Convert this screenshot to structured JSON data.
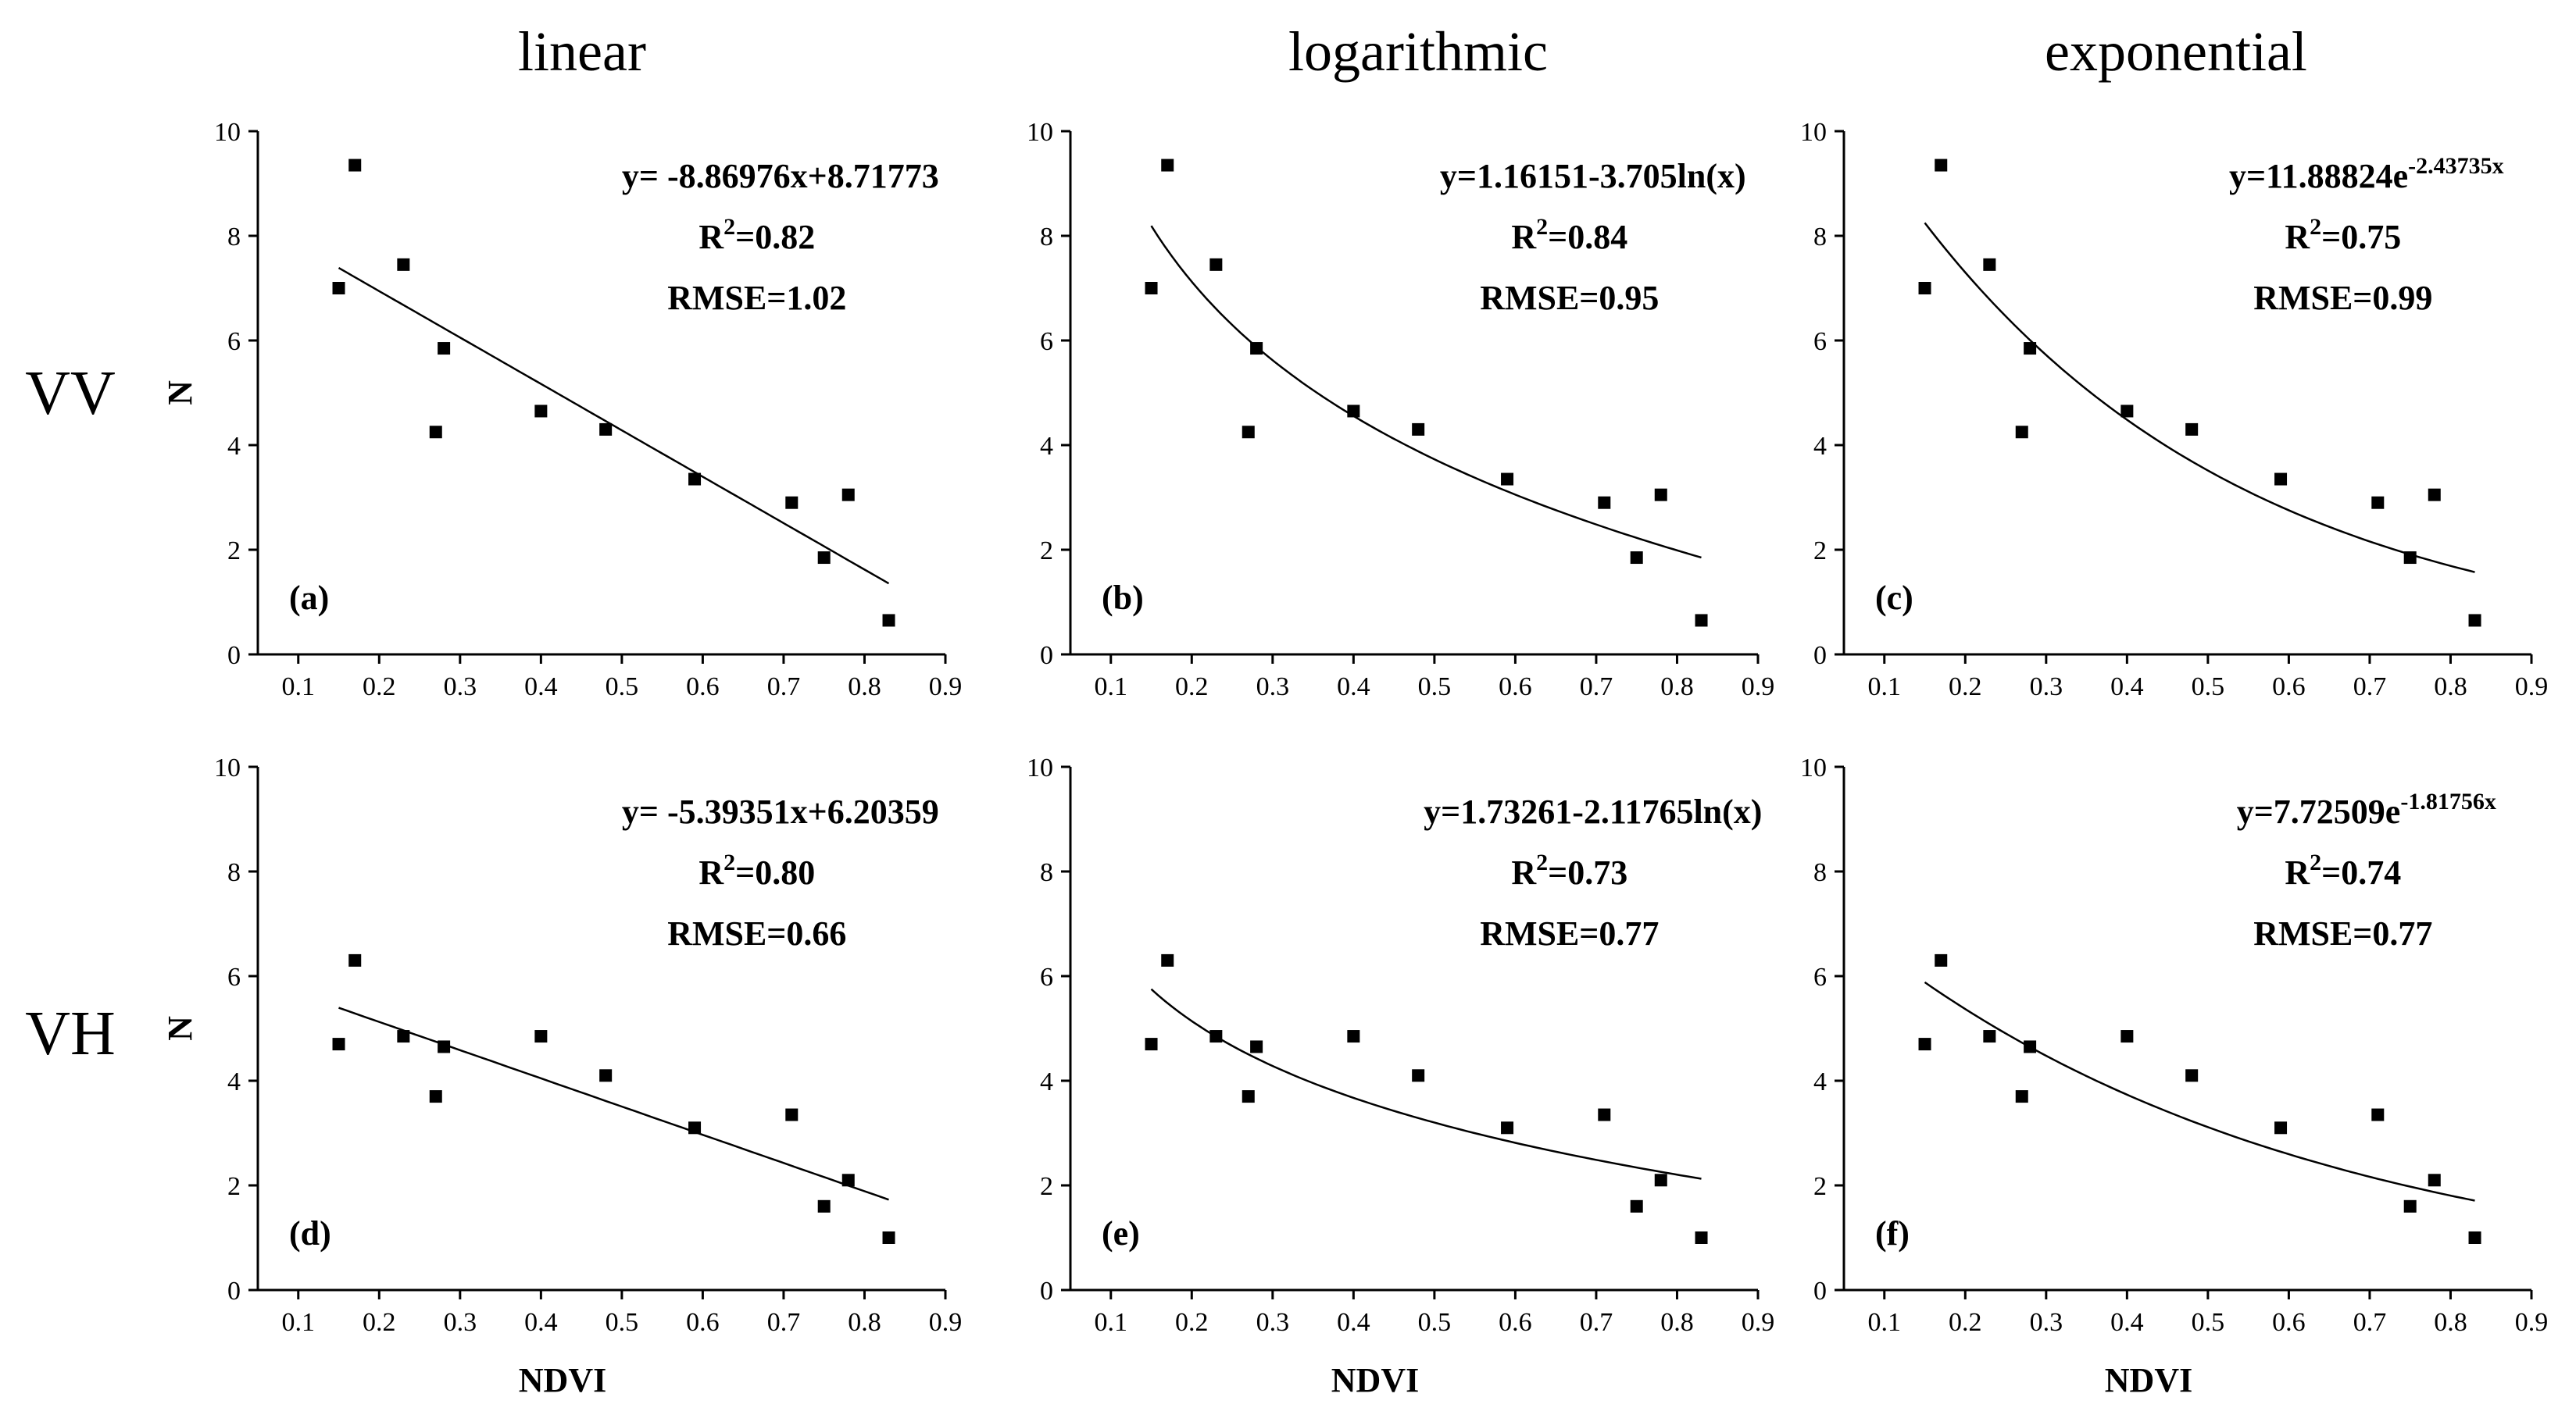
{
  "figure": {
    "column_titles": [
      "linear",
      "logarithmic",
      "exponential"
    ],
    "row_labels": [
      "VV",
      "VH"
    ],
    "y_axis_label": "N",
    "x_axis_label": "NDVI"
  },
  "chart_data": [
    {
      "type": "scatter",
      "panel": "(a)",
      "row": "VV",
      "model": "linear",
      "x": [
        0.15,
        0.17,
        0.23,
        0.27,
        0.28,
        0.4,
        0.48,
        0.59,
        0.71,
        0.75,
        0.78,
        0.83
      ],
      "y": [
        7.0,
        9.35,
        7.45,
        4.25,
        5.85,
        4.65,
        4.3,
        3.35,
        2.9,
        1.85,
        3.05,
        0.65
      ],
      "fit": {
        "kind": "linear",
        "a": -8.86976,
        "b": 8.71773
      },
      "equation": "y= -8.86976x+8.71773",
      "r2_label": "R",
      "r2_sup": "2",
      "r2_value": "=0.82",
      "rmse": "RMSE=1.02",
      "xlim": [
        0.05,
        0.9
      ],
      "ylim": [
        0,
        10
      ],
      "xticks": [
        "0.1",
        "0.2",
        "0.3",
        "0.4",
        "0.5",
        "0.6",
        "0.7",
        "0.8",
        "0.9"
      ],
      "yticks": [
        "0",
        "2",
        "4",
        "6",
        "8",
        "10"
      ],
      "xlabel": "",
      "ylabel": "N"
    },
    {
      "type": "scatter",
      "panel": "(b)",
      "row": "VV",
      "model": "logarithmic",
      "x": [
        0.15,
        0.17,
        0.23,
        0.27,
        0.28,
        0.4,
        0.48,
        0.59,
        0.71,
        0.75,
        0.78,
        0.83
      ],
      "y": [
        7.0,
        9.35,
        7.45,
        4.25,
        5.85,
        4.65,
        4.3,
        3.35,
        2.9,
        1.85,
        3.05,
        0.65
      ],
      "fit": {
        "kind": "log",
        "a": 1.16151,
        "b": -3.705
      },
      "equation": "y=1.16151-3.705ln(x)",
      "r2_label": "R",
      "r2_sup": "2",
      "r2_value": "=0.84",
      "rmse": "RMSE=0.95",
      "xlim": [
        0.05,
        0.9
      ],
      "ylim": [
        0,
        10
      ],
      "xticks": [
        "0.1",
        "0.2",
        "0.3",
        "0.4",
        "0.5",
        "0.6",
        "0.7",
        "0.8",
        "0.9"
      ],
      "yticks": [
        "0",
        "2",
        "4",
        "6",
        "8",
        "10"
      ],
      "xlabel": "",
      "ylabel": ""
    },
    {
      "type": "scatter",
      "panel": "(c)",
      "row": "VV",
      "model": "exponential",
      "x": [
        0.15,
        0.17,
        0.23,
        0.27,
        0.28,
        0.4,
        0.48,
        0.59,
        0.71,
        0.75,
        0.78,
        0.83
      ],
      "y": [
        7.0,
        9.35,
        7.45,
        4.25,
        5.85,
        4.65,
        4.3,
        3.35,
        2.9,
        1.85,
        3.05,
        0.65
      ],
      "fit": {
        "kind": "exp",
        "a": 11.88824,
        "b": -2.43735
      },
      "equation": "y=11.88824e",
      "equation_sup": "-2.43735x",
      "r2_label": "R",
      "r2_sup": "2",
      "r2_value": "=0.75",
      "rmse": "RMSE=0.99",
      "xlim": [
        0.05,
        0.9
      ],
      "ylim": [
        0,
        10
      ],
      "xticks": [
        "0.1",
        "0.2",
        "0.3",
        "0.4",
        "0.5",
        "0.6",
        "0.7",
        "0.8",
        "0.9"
      ],
      "yticks": [
        "0",
        "2",
        "4",
        "6",
        "8",
        "10"
      ],
      "xlabel": "",
      "ylabel": ""
    },
    {
      "type": "scatter",
      "panel": "(d)",
      "row": "VH",
      "model": "linear",
      "x": [
        0.15,
        0.17,
        0.23,
        0.27,
        0.28,
        0.4,
        0.48,
        0.59,
        0.71,
        0.75,
        0.78,
        0.83
      ],
      "y": [
        4.7,
        6.3,
        4.85,
        3.7,
        4.65,
        4.85,
        4.1,
        3.1,
        3.35,
        1.6,
        2.1,
        1.0
      ],
      "fit": {
        "kind": "linear",
        "a": -5.39351,
        "b": 6.20359
      },
      "equation": "y= -5.39351x+6.20359",
      "r2_label": "R",
      "r2_sup": "2",
      "r2_value": "=0.80",
      "rmse": "RMSE=0.66",
      "xlim": [
        0.05,
        0.9
      ],
      "ylim": [
        0,
        10
      ],
      "xticks": [
        "0.1",
        "0.2",
        "0.3",
        "0.4",
        "0.5",
        "0.6",
        "0.7",
        "0.8",
        "0.9"
      ],
      "yticks": [
        "0",
        "2",
        "4",
        "6",
        "8",
        "10"
      ],
      "xlabel": "NDVI",
      "ylabel": "N"
    },
    {
      "type": "scatter",
      "panel": "(e)",
      "row": "VH",
      "model": "logarithmic",
      "x": [
        0.15,
        0.17,
        0.23,
        0.27,
        0.28,
        0.4,
        0.48,
        0.59,
        0.71,
        0.75,
        0.78,
        0.83
      ],
      "y": [
        4.7,
        6.3,
        4.85,
        3.7,
        4.65,
        4.85,
        4.1,
        3.1,
        3.35,
        1.6,
        2.1,
        1.0
      ],
      "fit": {
        "kind": "log",
        "a": 1.73261,
        "b": -2.11765
      },
      "equation": "y=1.73261-2.11765ln(x)",
      "r2_label": "R",
      "r2_sup": "2",
      "r2_value": "=0.73",
      "rmse": "RMSE=0.77",
      "xlim": [
        0.05,
        0.9
      ],
      "ylim": [
        0,
        10
      ],
      "xticks": [
        "0.1",
        "0.2",
        "0.3",
        "0.4",
        "0.5",
        "0.6",
        "0.7",
        "0.8",
        "0.9"
      ],
      "yticks": [
        "0",
        "2",
        "4",
        "6",
        "8",
        "10"
      ],
      "xlabel": "NDVI",
      "ylabel": ""
    },
    {
      "type": "scatter",
      "panel": "(f)",
      "row": "VH",
      "model": "exponential",
      "x": [
        0.15,
        0.17,
        0.23,
        0.27,
        0.28,
        0.4,
        0.48,
        0.59,
        0.71,
        0.75,
        0.78,
        0.83
      ],
      "y": [
        4.7,
        6.3,
        4.85,
        3.7,
        4.65,
        4.85,
        4.1,
        3.1,
        3.35,
        1.6,
        2.1,
        1.0
      ],
      "fit": {
        "kind": "exp",
        "a": 7.72509,
        "b": -1.81756
      },
      "equation": "y=7.72509e",
      "equation_sup": "-1.81756x",
      "r2_label": "R",
      "r2_sup": "2",
      "r2_value": "=0.74",
      "rmse": "RMSE=0.77",
      "xlim": [
        0.05,
        0.9
      ],
      "ylim": [
        0,
        10
      ],
      "xticks": [
        "0.1",
        "0.2",
        "0.3",
        "0.4",
        "0.5",
        "0.6",
        "0.7",
        "0.8",
        "0.9"
      ],
      "yticks": [
        "0",
        "2",
        "4",
        "6",
        "8",
        "10"
      ],
      "xlabel": "NDVI",
      "ylabel": ""
    }
  ]
}
